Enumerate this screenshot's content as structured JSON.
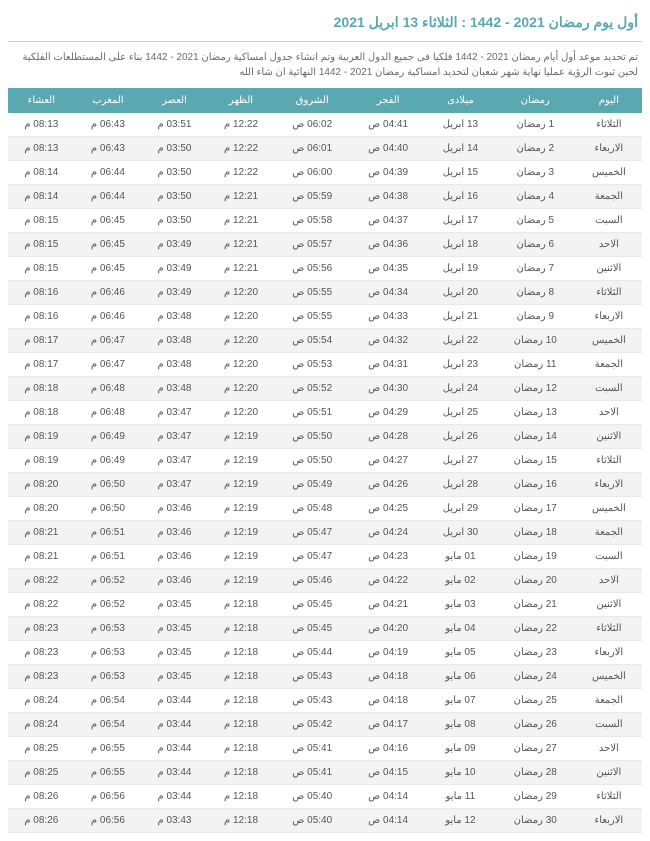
{
  "title": "أول يوم رمضان 2021 - 1442 : الثلاثاء 13 ابريل 2021",
  "subtitle": "تم تحديد موعد أول أيام رمضان 2021 - 1442 فلكيا فى جميع الدول العربية وتم انشاء جدول امساكية رمضان 2021 - 1442 بناء على المستطلعات الفلكية لحين ثبوت الرؤية عمليا نهاية شهر شعبان لتحديد امساكية رمضان 2021 - 1442 النهائية ان شاء الله",
  "columns": [
    "اليوم",
    "رمضان",
    "ميلادى",
    "الفجر",
    "الشروق",
    "الظهر",
    "العصر",
    "المغرب",
    "العشاء"
  ],
  "rows": [
    [
      "الثلاثاء",
      "1 رمضان",
      "13 ابريل",
      "04:41 ص",
      "06:02 ص",
      "12:22 م",
      "03:51 م",
      "06:43 م",
      "08:13 م"
    ],
    [
      "الاربعاء",
      "2 رمضان",
      "14 ابريل",
      "04:40 ص",
      "06:01 ص",
      "12:22 م",
      "03:50 م",
      "06:43 م",
      "08:13 م"
    ],
    [
      "الخميس",
      "3 رمضان",
      "15 ابريل",
      "04:39 ص",
      "06:00 ص",
      "12:22 م",
      "03:50 م",
      "06:44 م",
      "08:14 م"
    ],
    [
      "الجمعة",
      "4 رمضان",
      "16 ابريل",
      "04:38 ص",
      "05:59 ص",
      "12:21 م",
      "03:50 م",
      "06:44 م",
      "08:14 م"
    ],
    [
      "السبت",
      "5 رمضان",
      "17 ابريل",
      "04:37 ص",
      "05:58 ص",
      "12:21 م",
      "03:50 م",
      "06:45 م",
      "08:15 م"
    ],
    [
      "الاحد",
      "6 رمضان",
      "18 ابريل",
      "04:36 ص",
      "05:57 ص",
      "12:21 م",
      "03:49 م",
      "06:45 م",
      "08:15 م"
    ],
    [
      "الاثنين",
      "7 رمضان",
      "19 ابريل",
      "04:35 ص",
      "05:56 ص",
      "12:21 م",
      "03:49 م",
      "06:45 م",
      "08:15 م"
    ],
    [
      "الثلاثاء",
      "8 رمضان",
      "20 ابريل",
      "04:34 ص",
      "05:55 ص",
      "12:20 م",
      "03:49 م",
      "06:46 م",
      "08:16 م"
    ],
    [
      "الاربعاء",
      "9 رمضان",
      "21 ابريل",
      "04:33 ص",
      "05:55 ص",
      "12:20 م",
      "03:48 م",
      "06:46 م",
      "08:16 م"
    ],
    [
      "الخميس",
      "10 رمضان",
      "22 ابريل",
      "04:32 ص",
      "05:54 ص",
      "12:20 م",
      "03:48 م",
      "06:47 م",
      "08:17 م"
    ],
    [
      "الجمعة",
      "11 رمضان",
      "23 ابريل",
      "04:31 ص",
      "05:53 ص",
      "12:20 م",
      "03:48 م",
      "06:47 م",
      "08:17 م"
    ],
    [
      "السبت",
      "12 رمضان",
      "24 ابريل",
      "04:30 ص",
      "05:52 ص",
      "12:20 م",
      "03:48 م",
      "06:48 م",
      "08:18 م"
    ],
    [
      "الاحد",
      "13 رمضان",
      "25 ابريل",
      "04:29 ص",
      "05:51 ص",
      "12:20 م",
      "03:47 م",
      "06:48 م",
      "08:18 م"
    ],
    [
      "الاثنين",
      "14 رمضان",
      "26 ابريل",
      "04:28 ص",
      "05:50 ص",
      "12:19 م",
      "03:47 م",
      "06:49 م",
      "08:19 م"
    ],
    [
      "الثلاثاء",
      "15 رمضان",
      "27 ابريل",
      "04:27 ص",
      "05:50 ص",
      "12:19 م",
      "03:47 م",
      "06:49 م",
      "08:19 م"
    ],
    [
      "الاربعاء",
      "16 رمضان",
      "28 ابريل",
      "04:26 ص",
      "05:49 ص",
      "12:19 م",
      "03:47 م",
      "06:50 م",
      "08:20 م"
    ],
    [
      "الخميس",
      "17 رمضان",
      "29 ابريل",
      "04:25 ص",
      "05:48 ص",
      "12:19 م",
      "03:46 م",
      "06:50 م",
      "08:20 م"
    ],
    [
      "الجمعة",
      "18 رمضان",
      "30 ابريل",
      "04:24 ص",
      "05:47 ص",
      "12:19 م",
      "03:46 م",
      "06:51 م",
      "08:21 م"
    ],
    [
      "السبت",
      "19 رمضان",
      "01 مايو",
      "04:23 ص",
      "05:47 ص",
      "12:19 م",
      "03:46 م",
      "06:51 م",
      "08:21 م"
    ],
    [
      "الاحد",
      "20 رمضان",
      "02 مايو",
      "04:22 ص",
      "05:46 ص",
      "12:19 م",
      "03:46 م",
      "06:52 م",
      "08:22 م"
    ],
    [
      "الاثنين",
      "21 رمضان",
      "03 مايو",
      "04:21 ص",
      "05:45 ص",
      "12:18 م",
      "03:45 م",
      "06:52 م",
      "08:22 م"
    ],
    [
      "الثلاثاء",
      "22 رمضان",
      "04 مايو",
      "04:20 ص",
      "05:45 ص",
      "12:18 م",
      "03:45 م",
      "06:53 م",
      "08:23 م"
    ],
    [
      "الاربعاء",
      "23 رمضان",
      "05 مايو",
      "04:19 ص",
      "05:44 ص",
      "12:18 م",
      "03:45 م",
      "06:53 م",
      "08:23 م"
    ],
    [
      "الخميس",
      "24 رمضان",
      "06 مايو",
      "04:18 ص",
      "05:43 ص",
      "12:18 م",
      "03:45 م",
      "06:53 م",
      "08:23 م"
    ],
    [
      "الجمعة",
      "25 رمضان",
      "07 مايو",
      "04:18 ص",
      "05:43 ص",
      "12:18 م",
      "03:44 م",
      "06:54 م",
      "08:24 م"
    ],
    [
      "السبت",
      "26 رمضان",
      "08 مايو",
      "04:17 ص",
      "05:42 ص",
      "12:18 م",
      "03:44 م",
      "06:54 م",
      "08:24 م"
    ],
    [
      "الاحد",
      "27 رمضان",
      "09 مايو",
      "04:16 ص",
      "05:41 ص",
      "12:18 م",
      "03:44 م",
      "06:55 م",
      "08:25 م"
    ],
    [
      "الاثنين",
      "28 رمضان",
      "10 مايو",
      "04:15 ص",
      "05:41 ص",
      "12:18 م",
      "03:44 م",
      "06:55 م",
      "08:25 م"
    ],
    [
      "الثلاثاء",
      "29 رمضان",
      "11 مايو",
      "04:14 ص",
      "05:40 ص",
      "12:18 م",
      "03:44 م",
      "06:56 م",
      "08:26 م"
    ],
    [
      "الاربعاء",
      "30 رمضان",
      "12 مايو",
      "04:14 ص",
      "05:40 ص",
      "12:18 م",
      "03:43 م",
      "06:56 م",
      "08:26 م"
    ]
  ]
}
